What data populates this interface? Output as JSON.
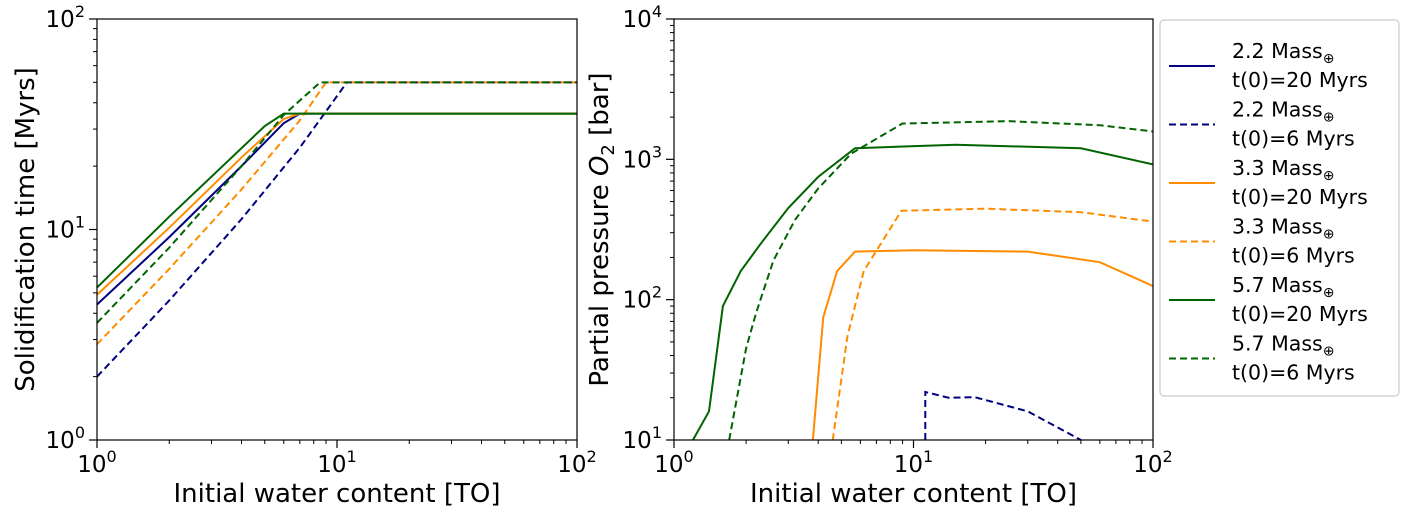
{
  "chart_data": [
    {
      "type": "line",
      "xlabel": "Initial water content [TO]",
      "ylabel": "Solidification time [Myrs]",
      "xscale": "log",
      "yscale": "log",
      "xlim": [
        1,
        100
      ],
      "ylim": [
        1,
        100
      ],
      "x_ticks": [
        {
          "base": "10",
          "exp": "0"
        },
        {
          "base": "10",
          "exp": "1"
        },
        {
          "base": "10",
          "exp": "2"
        }
      ],
      "y_ticks": [
        {
          "base": "10",
          "exp": "0"
        },
        {
          "base": "10",
          "exp": "1"
        },
        {
          "base": "10",
          "exp": "2"
        }
      ],
      "series": [
        {
          "name": "2.2 Mass⊕ t(0)=20 Myrs",
          "color": "#000080",
          "dash": "solid",
          "points": [
            [
              1,
              4.4
            ],
            [
              2,
              9.2
            ],
            [
              4,
              20
            ],
            [
              6,
              32
            ],
            [
              7,
              35.5
            ],
            [
              100,
              35.5
            ]
          ]
        },
        {
          "name": "2.2 Mass⊕ t(0)=6 Myrs",
          "color": "#000080",
          "dash": "dashed",
          "points": [
            [
              1,
              2.0
            ],
            [
              2,
              4.6
            ],
            [
              4,
              11.2
            ],
            [
              7,
              24.5
            ],
            [
              11,
              50
            ],
            [
              100,
              50
            ]
          ]
        },
        {
          "name": "3.3 Mass⊕ t(0)=20 Myrs",
          "color": "#ff8c00",
          "dash": "solid",
          "points": [
            [
              1,
              4.9
            ],
            [
              2,
              10.2
            ],
            [
              4,
              22
            ],
            [
              6,
              33.5
            ],
            [
              7,
              35.5
            ],
            [
              100,
              35.5
            ]
          ]
        },
        {
          "name": "3.3 Mass⊕ t(0)=6 Myrs",
          "color": "#ff8c00",
          "dash": "dashed",
          "points": [
            [
              1,
              2.85
            ],
            [
              2,
              6.5
            ],
            [
              4,
              15.5
            ],
            [
              7,
              33
            ],
            [
              9,
              50
            ],
            [
              100,
              50
            ]
          ]
        },
        {
          "name": "5.7 Mass⊕ t(0)=20 Myrs",
          "color": "#006400",
          "dash": "solid",
          "points": [
            [
              1,
              5.3
            ],
            [
              2,
              11.5
            ],
            [
              5,
              31
            ],
            [
              6,
              35.5
            ],
            [
              100,
              35.5
            ]
          ]
        },
        {
          "name": "5.7 Mass⊕ t(0)=6 Myrs",
          "color": "#006400",
          "dash": "dashed",
          "points": [
            [
              1,
              3.6
            ],
            [
              2,
              8.2
            ],
            [
              4,
              20
            ],
            [
              6,
              35
            ],
            [
              8.5,
              50
            ],
            [
              100,
              50
            ]
          ]
        }
      ]
    },
    {
      "type": "line",
      "xlabel": "Initial water content [TO]",
      "ylabel_main": "Partial pressure ",
      "ylabel_symbol": "O",
      "ylabel_sub": "2",
      "ylabel_unit": " [bar]",
      "xscale": "log",
      "yscale": "log",
      "xlim": [
        1,
        100
      ],
      "ylim": [
        10,
        10000
      ],
      "x_ticks": [
        {
          "base": "10",
          "exp": "0"
        },
        {
          "base": "10",
          "exp": "1"
        },
        {
          "base": "10",
          "exp": "2"
        }
      ],
      "y_ticks": [
        {
          "base": "10",
          "exp": "1"
        },
        {
          "base": "10",
          "exp": "2"
        },
        {
          "base": "10",
          "exp": "3"
        },
        {
          "base": "10",
          "exp": "4"
        }
      ],
      "series": [
        {
          "name": "2.2 Mass⊕ t(0)=20 Myrs",
          "color": "#000080",
          "dash": "solid",
          "points": []
        },
        {
          "name": "2.2 Mass⊕ t(0)=6 Myrs",
          "color": "#000080",
          "dash": "dashed",
          "points": [
            [
              11.2,
              10
            ],
            [
              11.2,
              22
            ],
            [
              14,
              20
            ],
            [
              18,
              20.2
            ],
            [
              30,
              16
            ],
            [
              50,
              10
            ]
          ]
        },
        {
          "name": "3.3 Mass⊕ t(0)=20 Myrs",
          "color": "#ff8c00",
          "dash": "solid",
          "points": [
            [
              3.8,
              10
            ],
            [
              4.2,
              75
            ],
            [
              4.8,
              160
            ],
            [
              5.7,
              220
            ],
            [
              10,
              225
            ],
            [
              30,
              220
            ],
            [
              60,
              185
            ],
            [
              100,
              125
            ]
          ]
        },
        {
          "name": "3.3 Mass⊕ t(0)=6 Myrs",
          "color": "#ff8c00",
          "dash": "dashed",
          "points": [
            [
              4.6,
              10
            ],
            [
              5.3,
              55
            ],
            [
              6.2,
              160
            ],
            [
              8.9,
              430
            ],
            [
              20,
              445
            ],
            [
              50,
              420
            ],
            [
              100,
              360
            ]
          ]
        },
        {
          "name": "5.7 Mass⊕ t(0)=20 Myrs",
          "color": "#006400",
          "dash": "solid",
          "points": [
            [
              1.2,
              10
            ],
            [
              1.4,
              16
            ],
            [
              1.6,
              90
            ],
            [
              1.9,
              160
            ],
            [
              2.3,
              250
            ],
            [
              3,
              450
            ],
            [
              4,
              750
            ],
            [
              5.7,
              1200
            ],
            [
              15,
              1270
            ],
            [
              50,
              1200
            ],
            [
              100,
              920
            ]
          ]
        },
        {
          "name": "5.7 Mass⊕ t(0)=6 Myrs",
          "color": "#006400",
          "dash": "dashed",
          "points": [
            [
              1.7,
              10
            ],
            [
              2.0,
              45
            ],
            [
              2.2,
              80
            ],
            [
              2.6,
              190
            ],
            [
              3.2,
              370
            ],
            [
              4,
              620
            ],
            [
              5.5,
              1100
            ],
            [
              9,
              1800
            ],
            [
              25,
              1870
            ],
            [
              60,
              1750
            ],
            [
              100,
              1580
            ]
          ]
        }
      ]
    }
  ],
  "legend": {
    "placement": "right",
    "entries": [
      {
        "line1": "2.2 Mass",
        "symbol": "⊕",
        "line2": " t(0)=20 Myrs",
        "color": "#000080",
        "dash": "solid"
      },
      {
        "line1": "2.2 Mass",
        "symbol": "⊕",
        "line2": " t(0)=6 Myrs",
        "color": "#000080",
        "dash": "dashed"
      },
      {
        "line1": "3.3 Mass",
        "symbol": "⊕",
        "line2": " t(0)=20 Myrs",
        "color": "#ff8c00",
        "dash": "solid"
      },
      {
        "line1": "3.3 Mass",
        "symbol": "⊕",
        "line2": " t(0)=6 Myrs",
        "color": "#ff8c00",
        "dash": "dashed"
      },
      {
        "line1": "5.7 Mass",
        "symbol": "⊕",
        "line2": " t(0)=20 Myrs",
        "color": "#006400",
        "dash": "solid"
      },
      {
        "line1": "5.7 Mass",
        "symbol": "⊕",
        "line2": " t(0)=6 Myrs",
        "color": "#006400",
        "dash": "dashed"
      }
    ]
  }
}
